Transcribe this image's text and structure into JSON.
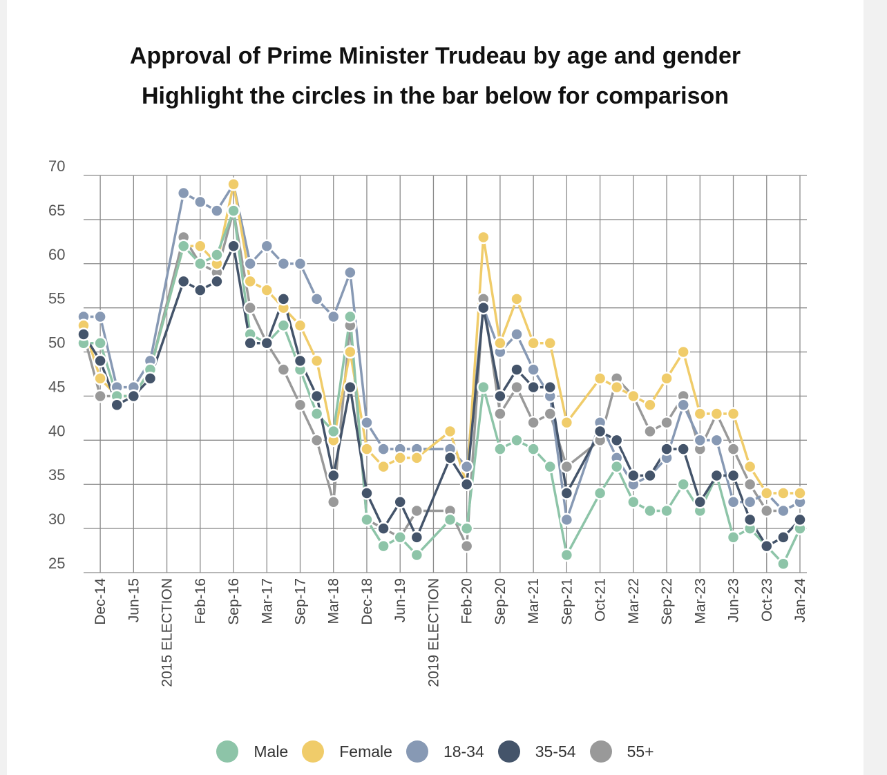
{
  "chart_data": {
    "type": "line",
    "title": "Approval of Prime Minister Trudeau by age and gender",
    "subtitle": "Highlight the circles in the bar below for comparison",
    "xlabel": "",
    "ylabel": "",
    "ylim": [
      25,
      70
    ],
    "yticks": [
      25,
      30,
      35,
      40,
      45,
      50,
      55,
      60,
      65,
      70
    ],
    "grid": true,
    "legend_position": "bottom",
    "categories": [
      "",
      "Dec-14",
      "",
      "Jun-15",
      "",
      "2015 ELECTION",
      "",
      "Feb-16",
      "",
      "Sep-16",
      "",
      "Mar-17",
      "",
      "Sep-17",
      "",
      "Mar-18",
      "",
      "Dec-18",
      "",
      "Jun-19",
      "",
      "2019 ELECTION",
      "",
      "Feb-20",
      "",
      "Sep-20",
      "",
      "Mar-21",
      "",
      "Sep-21",
      "",
      "Oct-21",
      "",
      "Mar-22",
      "",
      "Sep-22",
      "",
      "Mar-23",
      "",
      "Jun-23",
      "",
      "Oct-23",
      "",
      "Jan-24"
    ],
    "series": [
      {
        "name": "55+",
        "color": "#999999",
        "values": [
          52,
          45,
          45,
          45,
          48,
          null,
          63,
          60,
          59,
          66,
          55,
          51,
          48,
          44,
          40,
          33,
          53,
          31,
          30,
          29,
          32,
          null,
          32,
          28,
          56,
          43,
          46,
          42,
          43,
          37,
          null,
          40,
          47,
          45,
          41,
          42,
          45,
          39,
          43,
          39,
          35,
          32,
          32,
          33
        ]
      },
      {
        "name": "18-34",
        "color": "#8799b4",
        "values": [
          54,
          54,
          46,
          46,
          49,
          null,
          68,
          67,
          66,
          69,
          60,
          62,
          60,
          60,
          56,
          54,
          59,
          42,
          39,
          39,
          39,
          null,
          39,
          37,
          55,
          50,
          52,
          48,
          45,
          31,
          null,
          42,
          38,
          35,
          36,
          38,
          44,
          40,
          40,
          33,
          33,
          34,
          32,
          33
        ]
      },
      {
        "name": "Female",
        "color": "#f0cc6a",
        "values": [
          53,
          47,
          45,
          45,
          48,
          null,
          62,
          62,
          60,
          69,
          58,
          57,
          55,
          53,
          49,
          40,
          50,
          39,
          37,
          38,
          38,
          null,
          41,
          35,
          63,
          51,
          56,
          51,
          51,
          42,
          null,
          47,
          46,
          45,
          44,
          47,
          50,
          43,
          43,
          43,
          37,
          34,
          34,
          34
        ]
      },
      {
        "name": "Male",
        "color": "#8dc4a8",
        "values": [
          51,
          51,
          45,
          45,
          48,
          null,
          62,
          60,
          61,
          66,
          52,
          51,
          53,
          48,
          43,
          41,
          54,
          31,
          28,
          29,
          27,
          null,
          31,
          30,
          46,
          39,
          40,
          39,
          37,
          27,
          null,
          34,
          37,
          33,
          32,
          32,
          35,
          32,
          36,
          29,
          30,
          28,
          26,
          30
        ]
      },
      {
        "name": "35-54",
        "color": "#44546a",
        "values": [
          52,
          49,
          44,
          45,
          47,
          null,
          58,
          57,
          58,
          62,
          51,
          51,
          56,
          49,
          45,
          36,
          46,
          34,
          30,
          33,
          29,
          null,
          38,
          35,
          55,
          45,
          48,
          46,
          46,
          34,
          null,
          41,
          40,
          36,
          36,
          39,
          39,
          33,
          36,
          36,
          31,
          28,
          29,
          31
        ]
      }
    ],
    "legend": [
      {
        "label": "Male",
        "color": "#8dc4a8"
      },
      {
        "label": "Female",
        "color": "#f0cc6a"
      },
      {
        "label": "18-34",
        "color": "#8799b4"
      },
      {
        "label": "35-54",
        "color": "#44546a"
      },
      {
        "label": "55+",
        "color": "#999999"
      }
    ]
  }
}
